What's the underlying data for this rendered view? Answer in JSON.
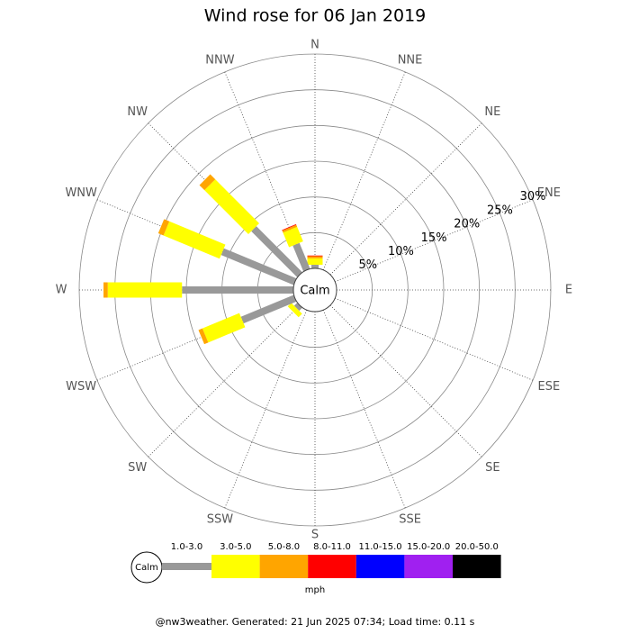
{
  "chart_data": {
    "type": "windrose",
    "title": "Wind rose for 06 Jan 2019",
    "directions": [
      "N",
      "NNE",
      "NE",
      "ENE",
      "E",
      "ESE",
      "SE",
      "SSE",
      "S",
      "SSW",
      "SW",
      "WSW",
      "W",
      "WNW",
      "NW",
      "NNW"
    ],
    "series": [
      {
        "name": "1.0-3.0",
        "color": "#999999",
        "values": [
          0.5,
          0,
          0,
          0,
          0,
          0,
          0,
          0,
          0,
          0,
          0.6,
          8,
          15.6,
          11,
          9.1,
          3.9
        ]
      },
      {
        "name": "3.0-5.0",
        "color": "#ffff00",
        "values": [
          0.9,
          0,
          0,
          0,
          0,
          0,
          0,
          0,
          0,
          0,
          0.7,
          5.6,
          10.4,
          8.5,
          8.7,
          2.2
        ]
      },
      {
        "name": "5.0-8.0",
        "color": "#ffa500",
        "values": [
          0.3,
          0,
          0,
          0,
          0,
          0,
          0,
          0,
          0,
          0,
          0,
          0.6,
          0.6,
          0.8,
          1.0,
          0.3
        ]
      },
      {
        "name": "8.0-11.0",
        "color": "#ff0000",
        "values": [
          0.1,
          0,
          0,
          0,
          0,
          0,
          0,
          0,
          0,
          0,
          0,
          0,
          0,
          0,
          0,
          0.1
        ]
      },
      {
        "name": "11.0-15.0",
        "color": "#0000ff",
        "values": [
          0,
          0,
          0,
          0,
          0,
          0,
          0,
          0,
          0,
          0,
          0,
          0,
          0,
          0,
          0,
          0
        ]
      },
      {
        "name": "15.0-20.0",
        "color": "#a020f0",
        "values": [
          0,
          0,
          0,
          0,
          0,
          0,
          0,
          0,
          0,
          0,
          0,
          0,
          0,
          0,
          0,
          0
        ]
      },
      {
        "name": "20.0-50.0",
        "color": "#000000",
        "values": [
          0,
          0,
          0,
          0,
          0,
          0,
          0,
          0,
          0,
          0,
          0,
          0,
          0,
          0,
          0,
          0
        ]
      }
    ],
    "rlim": [
      0,
      30
    ],
    "rticks": [
      {
        "value": 5,
        "label": "5%"
      },
      {
        "value": 10,
        "label": "10%"
      },
      {
        "value": 15,
        "label": "15%"
      },
      {
        "value": 20,
        "label": "20%"
      },
      {
        "value": 25,
        "label": "25%"
      },
      {
        "value": 30,
        "label": "30%"
      }
    ],
    "calm_label": "Calm",
    "units": "mph",
    "footer": "@nw3weather. Generated: 21 Jun 2025 07:34; Load time: 0.11 s"
  }
}
